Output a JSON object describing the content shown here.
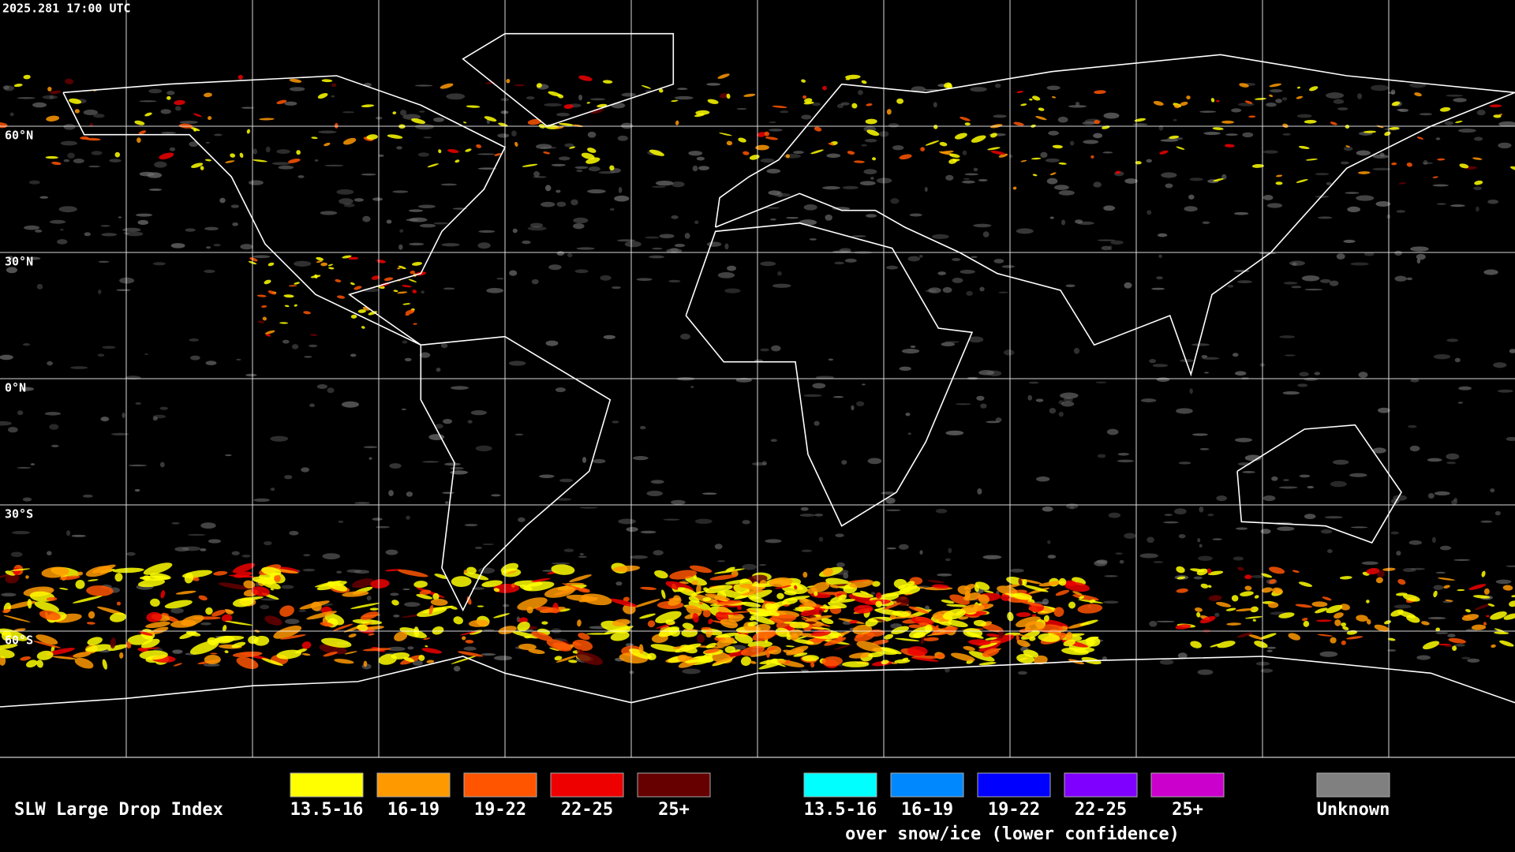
{
  "timestamp": "2025.281 17:00 UTC",
  "lat_labels": [
    "60°N",
    "30°N",
    "0°N",
    "30°S",
    "60°S"
  ],
  "legend": {
    "title": "SLW Large Drop Index",
    "items": [
      {
        "label": "13.5-16",
        "color": "#ffff00"
      },
      {
        "label": "16-19",
        "color": "#ff9900"
      },
      {
        "label": "19-22",
        "color": "#ff5500"
      },
      {
        "label": "22-25",
        "color": "#ee0000"
      },
      {
        "label": "25+",
        "color": "#660000"
      }
    ],
    "snow_items": [
      {
        "label": "13.5-16",
        "color": "#00ffff"
      },
      {
        "label": "16-19",
        "color": "#0088ff"
      },
      {
        "label": "19-22",
        "color": "#0000ff"
      },
      {
        "label": "22-25",
        "color": "#8000ff"
      },
      {
        "label": "25+",
        "color": "#cc00cc"
      }
    ],
    "snow_caption": "over snow/ice (lower confidence)",
    "unknown": {
      "label": "Unknown",
      "color": "#808080"
    }
  }
}
